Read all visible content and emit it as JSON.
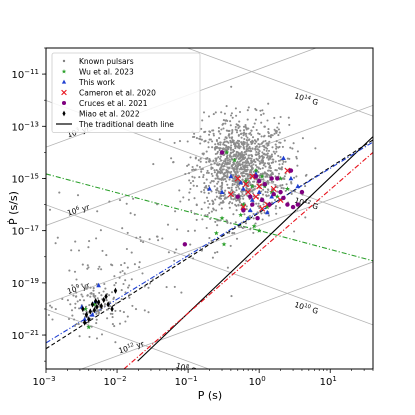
{
  "chart_data": {
    "type": "scatter",
    "title": "",
    "xlabel": "P (s)",
    "ylabel": "Ṗ (s/s)",
    "xscale": "log",
    "yscale": "log",
    "xlim": [
      0.001,
      40
    ],
    "ylim": [
      5e-23,
      1e-10
    ],
    "xticks": [
      {
        "label": "10",
        "exp": "−3",
        "value": 0.001
      },
      {
        "label": "10",
        "exp": "−2",
        "value": 0.01
      },
      {
        "label": "10",
        "exp": "−1",
        "value": 0.1
      },
      {
        "label": "10",
        "exp": "0",
        "value": 1
      },
      {
        "label": "10",
        "exp": "1",
        "value": 10
      }
    ],
    "yticks": [
      {
        "label": "10",
        "exp": "−11",
        "value": 1e-11
      },
      {
        "label": "10",
        "exp": "−13",
        "value": 1e-13
      },
      {
        "label": "10",
        "exp": "−15",
        "value": 1e-15
      },
      {
        "label": "10",
        "exp": "−17",
        "value": 1e-17
      },
      {
        "label": "10",
        "exp": "−19",
        "value": 1e-19
      },
      {
        "label": "10",
        "exp": "−21",
        "value": 1e-21
      }
    ],
    "grid": false,
    "legend_position": "top-left",
    "legend": [
      {
        "label": "Known pulsars",
        "marker": "dot",
        "color": "#808080"
      },
      {
        "label": "Wu et al. 2023",
        "marker": "star",
        "color": "#2ca02c"
      },
      {
        "label": "This work",
        "marker": "triangle",
        "color": "#1f3fd1"
      },
      {
        "label": "Cameron et al. 2020",
        "marker": "x",
        "color": "#e8141e"
      },
      {
        "label": "Cruces et al. 2021",
        "marker": "circle",
        "color": "#800080"
      },
      {
        "label": "Miao et al. 2022",
        "marker": "diamond",
        "color": "#000000"
      },
      {
        "label": "The traditional death line",
        "marker": "line",
        "color": "#000000"
      }
    ],
    "age_lines": [
      {
        "label": "10",
        "exp": "3",
        "unit": " yr",
        "tau_yr": 1000,
        "label_P": 0.0018
      },
      {
        "label": "10",
        "exp": "6",
        "unit": " yr",
        "tau_yr": 1000000,
        "label_P": 0.0018
      },
      {
        "label": "10",
        "exp": "9",
        "unit": " yr",
        "tau_yr": 1000000000,
        "label_P": 0.0018
      },
      {
        "label": "10",
        "exp": "12",
        "unit": " yr",
        "tau_yr": 1000000000000,
        "label_P": 0.0095
      }
    ],
    "field_lines": [
      {
        "label": "10",
        "exp": "14",
        "unit": " G",
        "B": 100000000000000.0,
        "label_P": 2.8
      },
      {
        "label": "10",
        "exp": "12",
        "unit": " G",
        "B": 1000000000000.0,
        "label_P": 2.8
      },
      {
        "label": "10",
        "exp": "10",
        "unit": " G",
        "B": 10000000000.0,
        "label_P": 2.8
      },
      {
        "label": "10",
        "exp": "8",
        "unit": " G",
        "B": 100000000.0,
        "label_P": 0.06
      }
    ],
    "death_lines": [
      {
        "name": "The traditional death line",
        "color": "#000000",
        "dash": "solid",
        "x": [
          0.0195,
          40
        ],
        "y": [
          1e-22,
          4e-14
        ]
      },
      {
        "name": "",
        "color": "#000000",
        "dash": "dashed",
        "x": [
          0.001,
          40
        ],
        "y": [
          3e-22,
          3e-14
        ]
      },
      {
        "name": "",
        "color": "#e8141e",
        "dash": "dashdot",
        "x": [
          0.0125,
          40
        ],
        "y": [
          5e-23,
          1e-14
        ]
      },
      {
        "name": "",
        "color": "#1f3fd1",
        "dash": "dashdot",
        "x": [
          0.001,
          40
        ],
        "y": [
          5e-22,
          2.5e-14
        ]
      },
      {
        "name": "",
        "color": "#2ca02c",
        "dash": "dashdot",
        "x": [
          0.001,
          40
        ],
        "y": [
          1.5e-15,
          7e-19
        ]
      }
    ],
    "series": [
      {
        "name": "Known pulsars",
        "marker": "dot",
        "color": "#808080",
        "generated": "pulsar_population"
      },
      {
        "name": "Wu et al. 2023",
        "marker": "star",
        "color": "#2ca02c",
        "points": [
          [
            0.004,
            2e-21
          ],
          [
            0.0048,
            1.5e-20
          ],
          [
            0.0036,
            1e-20
          ],
          [
            0.3,
            3e-17
          ],
          [
            0.45,
            5e-15
          ],
          [
            0.5,
            2e-16
          ],
          [
            0.6,
            1e-16
          ],
          [
            0.65,
            8e-16
          ],
          [
            0.7,
            3e-17
          ],
          [
            0.8,
            5e-16
          ],
          [
            0.9,
            2e-15
          ],
          [
            1.0,
            1e-17
          ],
          [
            1.2,
            5e-16
          ],
          [
            1.3,
            8e-17
          ],
          [
            1.5,
            3e-16
          ],
          [
            1.8,
            2e-16
          ],
          [
            2.0,
            1e-15
          ],
          [
            0.35,
            1e-14
          ],
          [
            0.55,
            4e-17
          ],
          [
            0.25,
            8e-18
          ],
          [
            0.32,
            3e-18
          ],
          [
            2.5,
            4e-16
          ],
          [
            1.1,
            1.2e-15
          ],
          [
            0.85,
            1.5e-17
          ]
        ]
      },
      {
        "name": "This work",
        "marker": "triangle",
        "color": "#1f3fd1",
        "points": [
          [
            0.0045,
            6e-21
          ],
          [
            0.005,
            2e-20
          ],
          [
            0.0055,
            8e-20
          ],
          [
            0.0032,
            1.2e-20
          ],
          [
            0.0035,
            4e-21
          ],
          [
            0.2,
            4e-16
          ],
          [
            0.4,
            1.2e-15
          ],
          [
            0.6,
            4e-16
          ],
          [
            0.8,
            1.5e-16
          ],
          [
            1.0,
            3e-16
          ],
          [
            1.5,
            2e-16
          ],
          [
            2.2,
            6e-15
          ],
          [
            2.8,
            1e-15
          ],
          [
            3.5,
            5e-16
          ],
          [
            1.3,
            5e-17
          ],
          [
            0.7,
            3e-17
          ],
          [
            0.9,
            1.5e-15
          ],
          [
            0.3,
            3e-16
          ],
          [
            0.55,
            7e-16
          ],
          [
            0.75,
            6e-17
          ]
        ]
      },
      {
        "name": "Cameron et al. 2020",
        "marker": "x",
        "color": "#e8141e",
        "points": [
          [
            0.5,
            1e-15
          ],
          [
            0.7,
            3e-16
          ],
          [
            1.0,
            5e-16
          ],
          [
            1.3,
            1e-16
          ],
          [
            2.0,
            1.5e-16
          ],
          [
            0.6,
            8e-17
          ],
          [
            0.9,
            2e-16
          ],
          [
            1.6,
            4e-16
          ],
          [
            0.8,
            1.2e-15
          ],
          [
            2.5,
            2e-15
          ],
          [
            0.4,
            2.5e-16
          ],
          [
            1.1,
            7e-17
          ],
          [
            0.65,
            6e-16
          ]
        ]
      },
      {
        "name": "Cruces et al. 2021",
        "marker": "circle",
        "color": "#800080",
        "points": [
          [
            0.3,
            1e-14
          ],
          [
            0.5,
            2e-16
          ],
          [
            0.8,
            1e-16
          ],
          [
            1.5,
            1e-15
          ],
          [
            2.5,
            1e-16
          ],
          [
            0.95,
            3e-17
          ],
          [
            0.09,
            3e-18
          ],
          [
            1.0,
            8e-16
          ],
          [
            3.0,
            8e-17
          ],
          [
            1.2,
            6e-16
          ],
          [
            0.9,
            1.2e-15
          ],
          [
            2.8,
            2e-15
          ],
          [
            2.0,
            3e-16
          ],
          [
            1.8,
            1e-15
          ],
          [
            3.5,
            1e-16
          ],
          [
            0.75,
            2e-16
          ],
          [
            1.1,
            1.5e-16
          ],
          [
            0.6,
            6e-17
          ],
          [
            1.4,
            1e-16
          ],
          [
            2.2,
            1.8e-16
          ],
          [
            4.0,
            3e-16
          ],
          [
            1.6,
            2.5e-16
          ]
        ]
      },
      {
        "name": "Miao et al. 2022",
        "marker": "diamond",
        "color": "#000000",
        "points": [
          [
            0.0033,
            1e-20
          ],
          [
            0.0037,
            6e-21
          ],
          [
            0.0042,
            8e-21
          ],
          [
            0.0045,
            1.5e-20
          ],
          [
            0.005,
            2e-20
          ],
          [
            0.0052,
            1.2e-20
          ],
          [
            0.0055,
            1.8e-20
          ],
          [
            0.006,
            1.3e-20
          ],
          [
            0.007,
            3e-20
          ],
          [
            0.0075,
            1.5e-20
          ],
          [
            0.0035,
            3e-21
          ],
          [
            0.004,
            4e-21
          ],
          [
            0.0085,
            1e-20
          ],
          [
            0.0065,
            2.2e-20
          ],
          [
            0.0095,
            5e-20
          ],
          [
            0.0048,
            9e-21
          ]
        ]
      }
    ]
  }
}
